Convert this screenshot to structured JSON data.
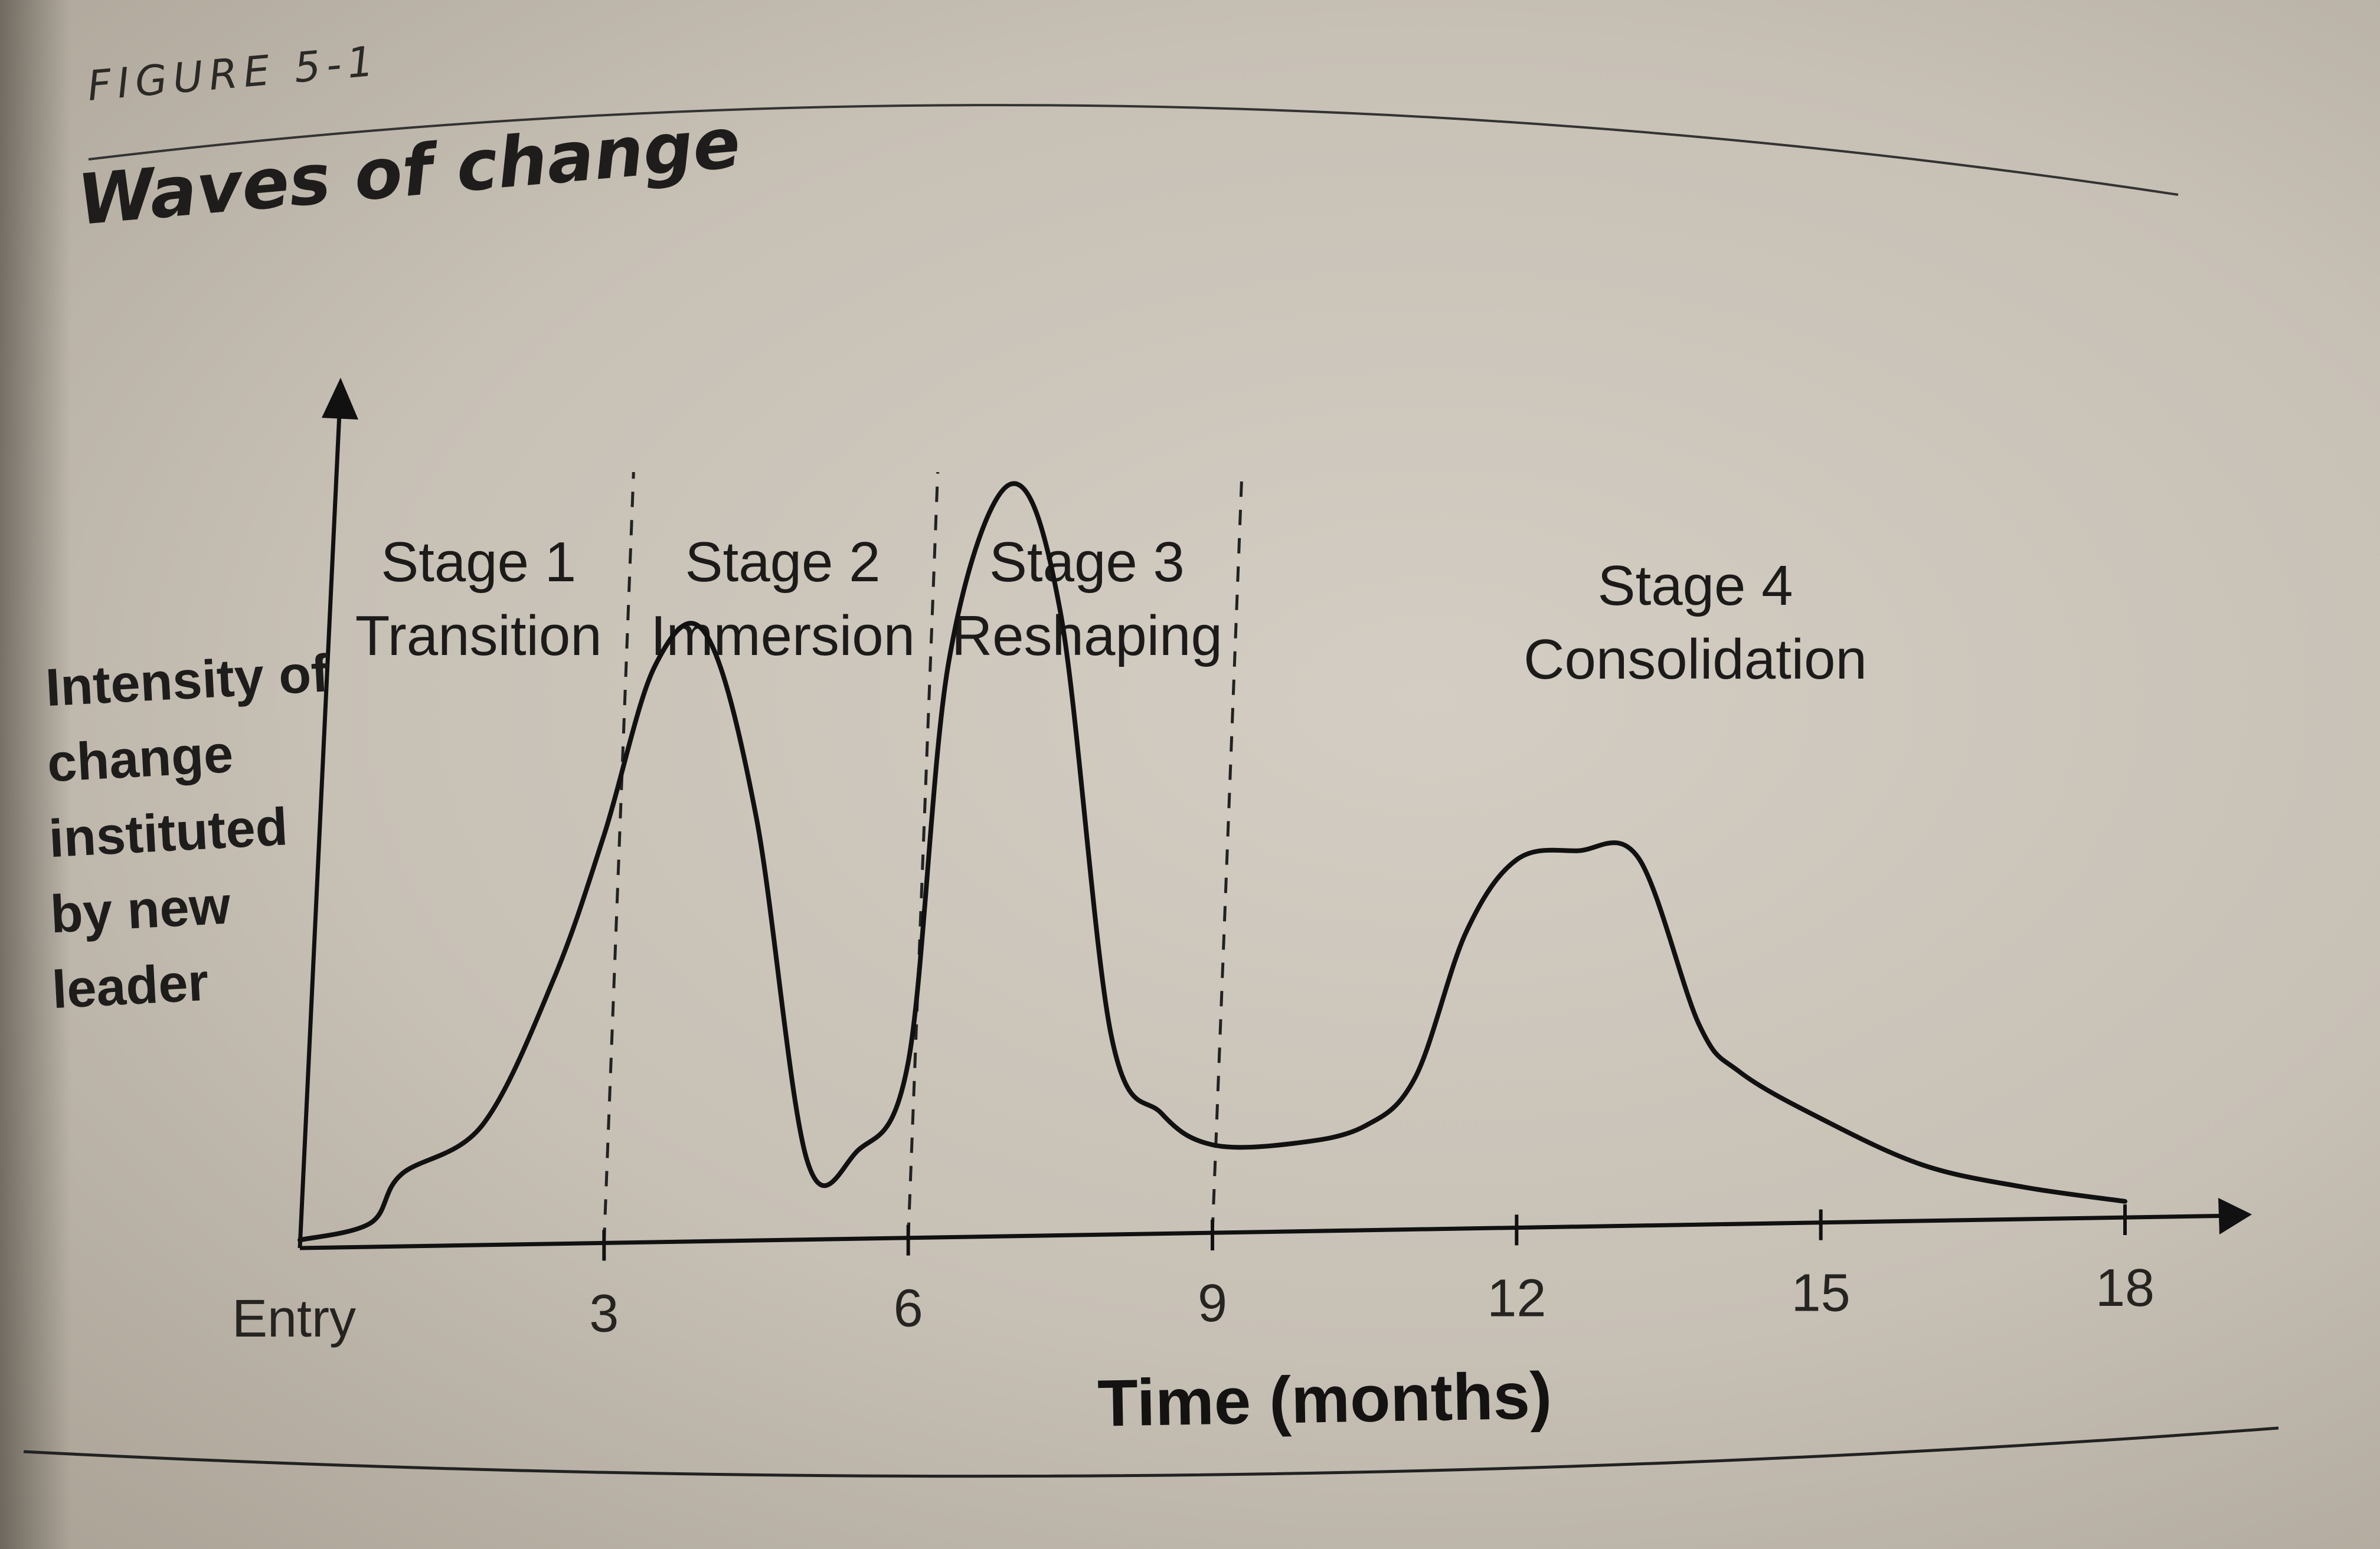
{
  "figure_label": "FIGURE 5-1",
  "title": "Waves of change",
  "chart_data": {
    "type": "line",
    "title": "Waves of change",
    "xlabel": "Time (months)",
    "ylabel_lines": [
      "Intensity of",
      "change",
      "instituted",
      "by new",
      "leader"
    ],
    "x_ticks": [
      {
        "value": 0,
        "label": "Entry"
      },
      {
        "value": 3,
        "label": "3"
      },
      {
        "value": 6,
        "label": "6"
      },
      {
        "value": 9,
        "label": "9"
      },
      {
        "value": 12,
        "label": "12"
      },
      {
        "value": 15,
        "label": "15"
      },
      {
        "value": 18,
        "label": "18"
      }
    ],
    "xlim": [
      0,
      18
    ],
    "ylim": [
      0,
      1
    ],
    "stage_boundaries": [
      3,
      6,
      9
    ],
    "stages": [
      {
        "name": "Stage 1",
        "label": "Transition"
      },
      {
        "name": "Stage 2",
        "label": "Immersion"
      },
      {
        "name": "Stage 3",
        "label": "Reshaping"
      },
      {
        "name": "Stage 4",
        "label": "Consolidation"
      }
    ],
    "series": [
      {
        "x": [
          0,
          0.7,
          1.0,
          1.8,
          2.5,
          3.0,
          3.5,
          4.0,
          4.5,
          5.0,
          5.5,
          6.0,
          6.4,
          7.0,
          7.5,
          8.0,
          8.5,
          9.0,
          9.8,
          10.5,
          11.0,
          11.5,
          12.0,
          12.6,
          13.2,
          13.8,
          14.2,
          15.0,
          16.0,
          17.0,
          18.0
        ],
        "y": [
          0.01,
          0.03,
          0.09,
          0.15,
          0.33,
          0.51,
          0.72,
          0.76,
          0.53,
          0.1,
          0.11,
          0.22,
          0.72,
          0.94,
          0.78,
          0.25,
          0.15,
          0.11,
          0.11,
          0.13,
          0.19,
          0.37,
          0.46,
          0.47,
          0.46,
          0.25,
          0.19,
          0.13,
          0.07,
          0.04,
          0.02
        ]
      }
    ],
    "grid": false,
    "legend": false
  }
}
